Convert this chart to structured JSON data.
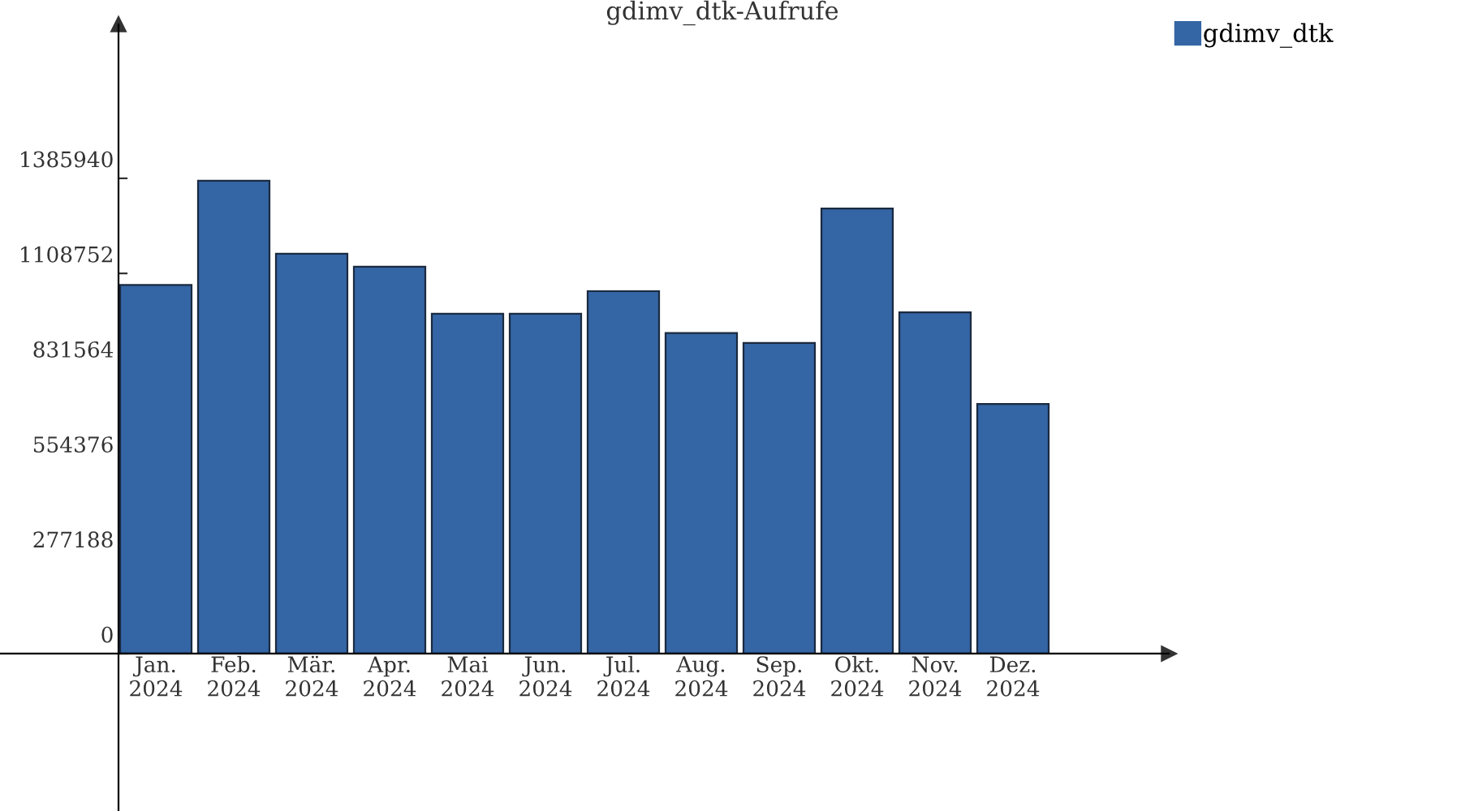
{
  "chart_data": {
    "type": "bar",
    "title": "gdimv_dtk-Aufrufe",
    "categories": [
      "Jan.\n2024",
      "Feb.\n2024",
      "Mär.\n2024",
      "Apr.\n2024",
      "Mai\n2024",
      "Jun.\n2024",
      "Jul.\n2024",
      "Aug.\n2024",
      "Sep.\n2024",
      "Okt.\n2024",
      "Nov.\n2024",
      "Dez.\n2024"
    ],
    "series": [
      {
        "name": "gdimv_dtk",
        "color": "#3465a4",
        "values": [
          1075000,
          1379000,
          1166000,
          1128000,
          991000,
          991000,
          1057000,
          935000,
          906000,
          1298000,
          995000,
          728000
        ]
      }
    ],
    "ylim": [
      -458800,
      1835000
    ],
    "yticks": [
      0,
      277188,
      554376,
      831564,
      1108752,
      1385940
    ],
    "grid": false,
    "legend": "top right"
  }
}
